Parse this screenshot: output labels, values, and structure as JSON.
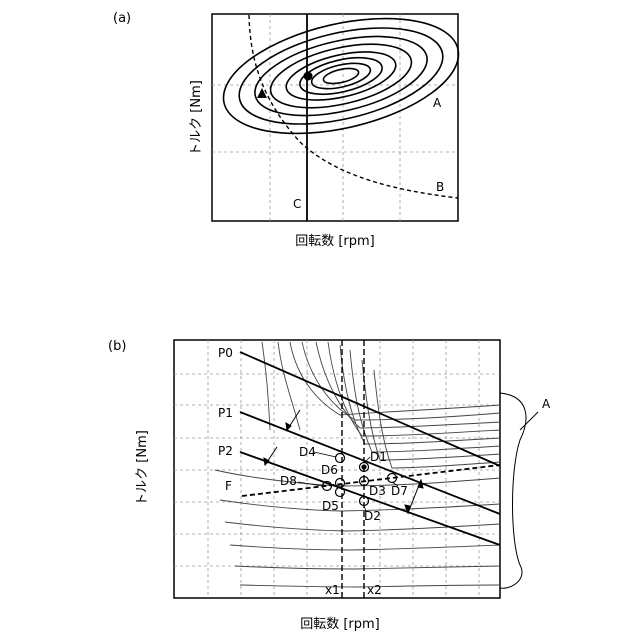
{
  "panel_a": {
    "tag": "(a)",
    "ylabel": "トルク [Nm]",
    "xlabel": "回転数 [rpm]",
    "labels": {
      "A": "A",
      "B": "B",
      "C": "C"
    }
  },
  "panel_b": {
    "tag": "(b)",
    "ylabel": "トルク [Nm]",
    "xlabel": "回転数 [rpm]",
    "labels": {
      "P0": "P0",
      "P1": "P1",
      "P2": "P2",
      "F": "F",
      "A": "A",
      "D1": "D1",
      "D2": "D2",
      "D3": "D3",
      "D4": "D4",
      "D5": "D5",
      "D6": "D6",
      "D7": "D7",
      "D8": "D8",
      "x1": "x1",
      "x2": "x2"
    }
  }
}
